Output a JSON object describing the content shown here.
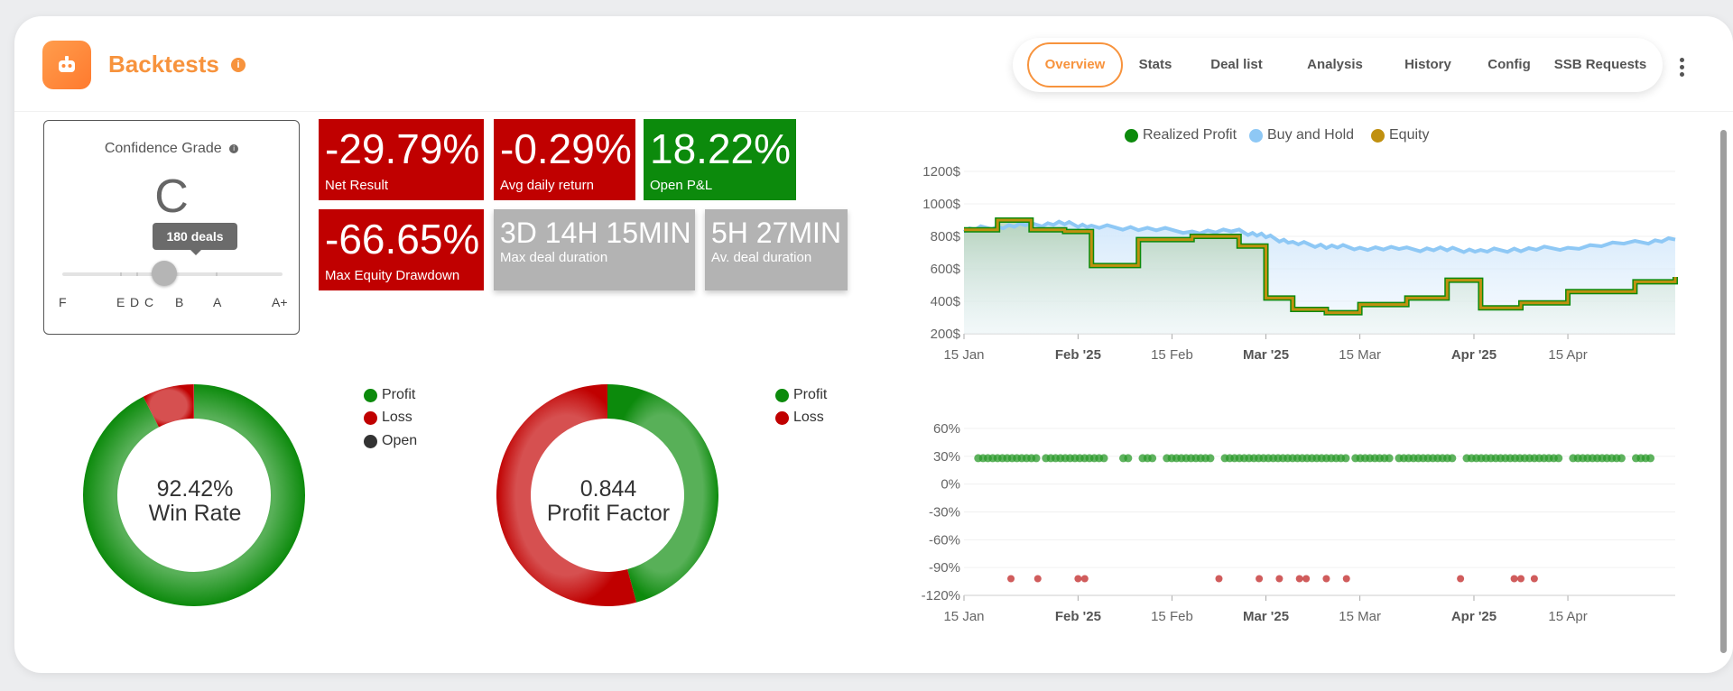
{
  "header": {
    "title": "Backtests",
    "info": "i",
    "tabs": [
      {
        "label": "Overview",
        "active": true
      },
      {
        "label": "Stats"
      },
      {
        "label": "Deal list"
      },
      {
        "label": "Analysis"
      },
      {
        "label": "History"
      },
      {
        "label": "Config"
      },
      {
        "label": "SSB Requests"
      }
    ]
  },
  "grade": {
    "label": "Confidence Grade",
    "info": "i",
    "letter": "C",
    "tooltip": "180 deals",
    "ticks": [
      "F",
      "E",
      "D",
      "C",
      "B",
      "A",
      "A+"
    ]
  },
  "stats": {
    "net_result": {
      "value": "-29.79%",
      "label": "Net Result"
    },
    "avg_daily": {
      "value": "-0.29%",
      "label": "Avg daily return"
    },
    "open_pnl": {
      "value": "18.22%",
      "label": "Open P&L"
    },
    "max_dd": {
      "value": "-66.65%",
      "label": "Max Equity Drawdown"
    },
    "max_duration": {
      "value": "3D 14H 15MIN",
      "label": "Max deal duration"
    },
    "avg_duration": {
      "value": "5H 27MIN",
      "label": "Av. deal duration"
    }
  },
  "winrate": {
    "value": "92.42%",
    "label": "Win Rate",
    "legend": [
      "Profit",
      "Loss",
      "Open"
    ],
    "profit_pct": 92.42,
    "loss_pct": 7.58,
    "colors": {
      "profit": "#0c8a0c",
      "loss": "#c00000",
      "open": "#333333"
    }
  },
  "profitfactor": {
    "value": "0.844",
    "label": "Profit Factor",
    "legend": [
      "Profit",
      "Loss"
    ],
    "profit_share": 0.458,
    "loss_share": 0.542
  },
  "chart_data": [
    {
      "type": "line",
      "title": "",
      "legend": [
        "Realized Profit",
        "Buy and Hold",
        "Equity"
      ],
      "colors": {
        "realized": "#0c8a0c",
        "buyhold": "#8ec8f5",
        "equity": "#c09010"
      },
      "y_ticks": [
        "1200$",
        "1000$",
        "800$",
        "600$",
        "400$",
        "200$"
      ],
      "ylim": [
        200,
        1200
      ],
      "x_ticks": [
        {
          "label": "15 Jan",
          "bold": false
        },
        {
          "label": "Feb '25",
          "bold": true
        },
        {
          "label": "15 Feb",
          "bold": false
        },
        {
          "label": "Mar '25",
          "bold": true
        },
        {
          "label": "15 Mar",
          "bold": false
        },
        {
          "label": "Apr '25",
          "bold": true
        },
        {
          "label": "15 Apr",
          "bold": false
        }
      ],
      "x_dates": [
        "2025-01-15",
        "2025-01-20",
        "2025-01-25",
        "2025-01-30",
        "2025-02-03",
        "2025-02-10",
        "2025-02-18",
        "2025-02-25",
        "2025-03-01",
        "2025-03-05",
        "2025-03-10",
        "2025-03-15",
        "2025-03-22",
        "2025-03-28",
        "2025-04-02",
        "2025-04-08",
        "2025-04-15",
        "2025-04-25",
        "2025-05-01"
      ],
      "series": [
        {
          "name": "Buy and Hold",
          "values": [
            840,
            860,
            870,
            880,
            860,
            850,
            830,
            830,
            800,
            760,
            740,
            730,
            720,
            720,
            710,
            720,
            730,
            760,
            780
          ]
        },
        {
          "name": "Equity",
          "values": [
            840,
            900,
            840,
            830,
            620,
            780,
            800,
            740,
            420,
            350,
            330,
            380,
            420,
            530,
            360,
            390,
            460,
            520,
            550
          ]
        },
        {
          "name": "Realized Profit",
          "values": [
            840,
            900,
            840,
            830,
            620,
            780,
            800,
            740,
            420,
            350,
            330,
            380,
            420,
            530,
            360,
            390,
            460,
            520,
            550
          ]
        }
      ]
    },
    {
      "type": "scatter",
      "title": "",
      "y_ticks": [
        "60%",
        "30%",
        "0%",
        "-30%",
        "-60%",
        "-90%",
        "-120%"
      ],
      "ylim": [
        -120,
        60
      ],
      "x_ticks": [
        {
          "label": "15 Jan",
          "bold": false
        },
        {
          "label": "Feb '25",
          "bold": true
        },
        {
          "label": "15 Feb",
          "bold": false
        },
        {
          "label": "Mar '25",
          "bold": true
        },
        {
          "label": "15 Mar",
          "bold": false
        },
        {
          "label": "Apr '25",
          "bold": true
        },
        {
          "label": "15 Apr",
          "bold": false
        }
      ],
      "profit_points_pct": 28,
      "loss_points_pct": -102,
      "loss_dates": [
        "2025-01-22",
        "2025-01-26",
        "2025-02-01",
        "2025-02-02",
        "2025-02-22",
        "2025-02-28",
        "2025-03-03",
        "2025-03-06",
        "2025-03-07",
        "2025-03-10",
        "2025-03-13",
        "2025-03-30",
        "2025-04-07",
        "2025-04-08",
        "2025-04-10"
      ]
    }
  ]
}
